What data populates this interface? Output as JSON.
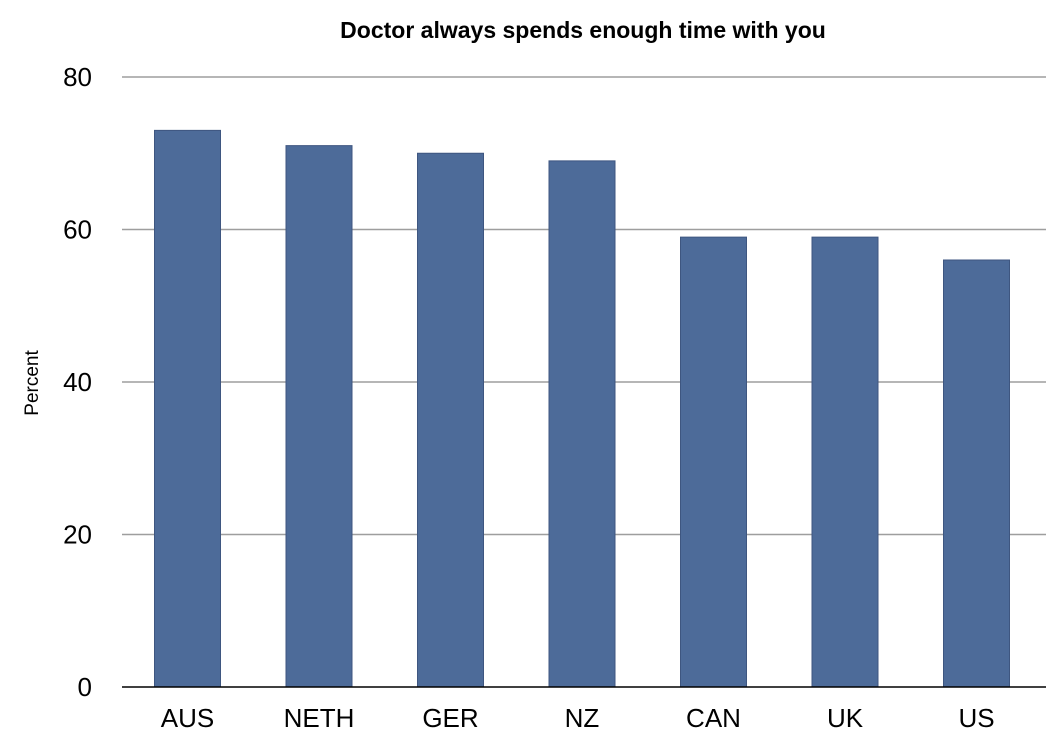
{
  "chart_data": {
    "type": "bar",
    "title": "Doctor always spends enough time with you",
    "xlabel": "",
    "ylabel": "Percent",
    "categories": [
      "AUS",
      "NETH",
      "GER",
      "NZ",
      "CAN",
      "UK",
      "US"
    ],
    "values": [
      73,
      71,
      70,
      69,
      59,
      59,
      56
    ],
    "ylim": [
      0,
      80
    ],
    "yticks": [
      0,
      20,
      40,
      60,
      80
    ],
    "grid": true,
    "legend": "none",
    "bar_color": "#4d6b99"
  }
}
